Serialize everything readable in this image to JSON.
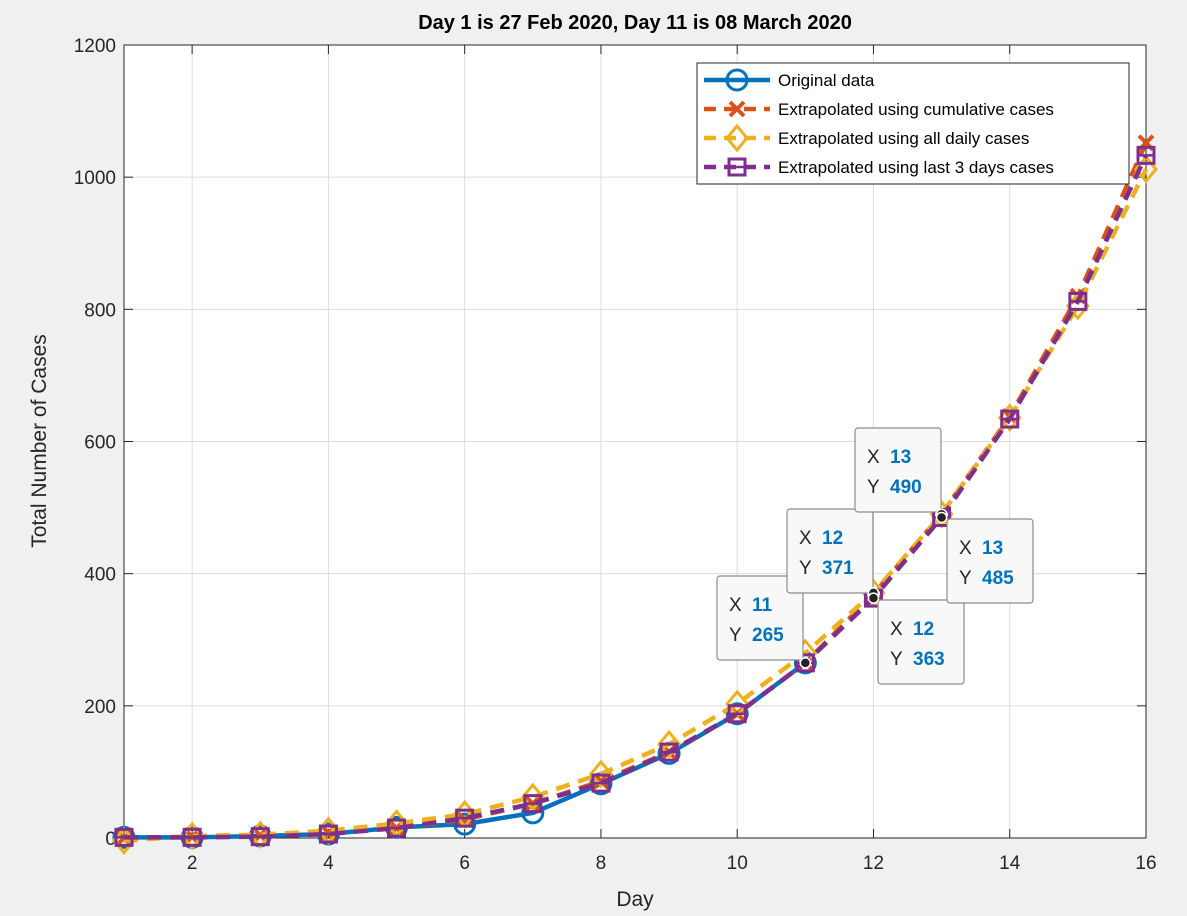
{
  "chart_data": {
    "type": "line",
    "title": "Day 1 is 27 Feb 2020, Day 11 is 08 March 2020",
    "xlabel": "Day",
    "ylabel": "Total Number of Cases",
    "xlim": [
      1,
      16
    ],
    "ylim": [
      0,
      1200
    ],
    "xticks": [
      2,
      4,
      6,
      8,
      10,
      12,
      14,
      16
    ],
    "yticks": [
      0,
      200,
      400,
      600,
      800,
      1000,
      1200
    ],
    "grid": true,
    "legend_position": "top-right",
    "series": [
      {
        "name": "Original data",
        "color": "#0072bd",
        "marker": "circle",
        "line": "solid",
        "x": [
          1,
          2,
          3,
          4,
          5,
          6,
          7,
          8,
          9,
          10,
          11
        ],
        "y": [
          1,
          1,
          3,
          6,
          16,
          21,
          38,
          82,
          128,
          188,
          265
        ]
      },
      {
        "name": "Extrapolated using cumulative cases",
        "color": "#d95319",
        "marker": "x",
        "line": "dashed",
        "x": [
          1,
          2,
          3,
          4,
          5,
          6,
          7,
          8,
          9,
          10,
          11,
          12,
          13,
          14,
          15,
          16
        ],
        "y": [
          0,
          2,
          4,
          8,
          15,
          28,
          52,
          86,
          130,
          188,
          265,
          369,
          490,
          638,
          820,
          1052
        ]
      },
      {
        "name": "Extrapolated using all daily cases",
        "color": "#edb120",
        "marker": "diamond",
        "line": "dashed",
        "x": [
          1,
          2,
          3,
          4,
          5,
          6,
          7,
          8,
          9,
          10,
          11,
          12,
          13,
          14,
          15,
          16
        ],
        "y": [
          -4,
          3,
          5,
          11,
          22,
          36,
          62,
          97,
          142,
          203,
          280,
          371,
          490,
          636,
          805,
          1012
        ]
      },
      {
        "name": "Extrapolated using last 3 days cases",
        "color": "#7e2f8e",
        "marker": "square",
        "line": "dashed",
        "x": [
          1,
          2,
          3,
          4,
          5,
          6,
          7,
          8,
          9,
          10,
          11,
          12,
          13,
          14,
          15,
          16
        ],
        "y": [
          1,
          1,
          2,
          6,
          15,
          30,
          52,
          83,
          130,
          188,
          265,
          363,
          485,
          634,
          812,
          1033
        ]
      }
    ],
    "annotations": [
      {
        "x_label": "X",
        "y_label": "Y",
        "x": 11,
        "y": 265
      },
      {
        "x_label": "X",
        "y_label": "Y",
        "x": 12,
        "y": 371
      },
      {
        "x_label": "X",
        "y_label": "Y",
        "x": 13,
        "y": 490
      },
      {
        "x_label": "X",
        "y_label": "Y",
        "x": 12,
        "y": 363
      },
      {
        "x_label": "X",
        "y_label": "Y",
        "x": 13,
        "y": 485
      }
    ]
  }
}
